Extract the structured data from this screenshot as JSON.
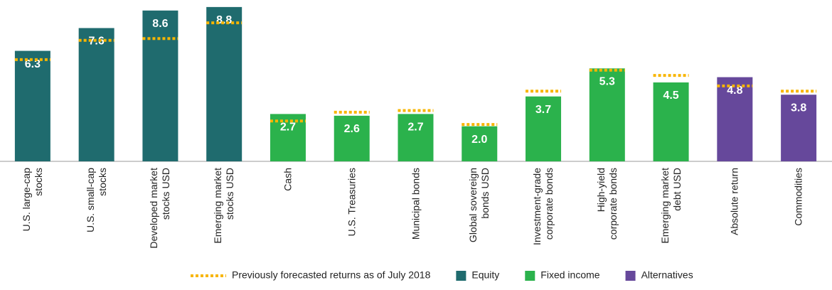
{
  "chart_data": {
    "type": "bar",
    "categories": [
      "U.S. large-cap stocks",
      "U.S. small-cap stocks",
      "Developed market stocks USD",
      "Emerging market stocks USD",
      "Cash",
      "U.S. Treasuries",
      "Municipal bonds",
      "Global sovereign bonds USD",
      "Investment-grade corporate bonds",
      "High-yield corporate bonds",
      "Emerging market debt USD",
      "Absolute return",
      "Commodities"
    ],
    "series": [
      {
        "name": "Equity",
        "color": "#1f6b6e",
        "values": [
          6.3,
          7.6,
          8.6,
          8.8,
          null,
          null,
          null,
          null,
          null,
          null,
          null,
          null,
          null
        ],
        "value_labels": [
          "6.3",
          "7.6",
          "8.6",
          "8.8",
          null,
          null,
          null,
          null,
          null,
          null,
          null,
          null,
          null
        ]
      },
      {
        "name": "Fixed income",
        "color": "#2bb24c",
        "values": [
          null,
          null,
          null,
          null,
          2.7,
          2.6,
          2.7,
          2.0,
          3.7,
          5.3,
          4.5,
          null,
          null
        ],
        "value_labels": [
          null,
          null,
          null,
          null,
          "2.7",
          "2.6",
          "2.7",
          "2.0",
          "3.7",
          "5.3",
          "4.5",
          null,
          null
        ]
      },
      {
        "name": "Alternatives",
        "color": "#66489b",
        "values": [
          null,
          null,
          null,
          null,
          null,
          null,
          null,
          null,
          null,
          null,
          null,
          4.8,
          3.8
        ],
        "value_labels": [
          null,
          null,
          null,
          null,
          null,
          null,
          null,
          null,
          null,
          null,
          null,
          "4.8",
          "3.8"
        ]
      },
      {
        "name": "Previously forecasted returns as of July 2018",
        "color": "#f7b500",
        "style": "dashed",
        "values": [
          5.8,
          6.9,
          7.0,
          7.9,
          2.3,
          2.8,
          2.9,
          2.1,
          4.0,
          5.2,
          4.9,
          4.3,
          4.0
        ]
      }
    ],
    "ylim": [
      0,
      9.2
    ]
  }
}
